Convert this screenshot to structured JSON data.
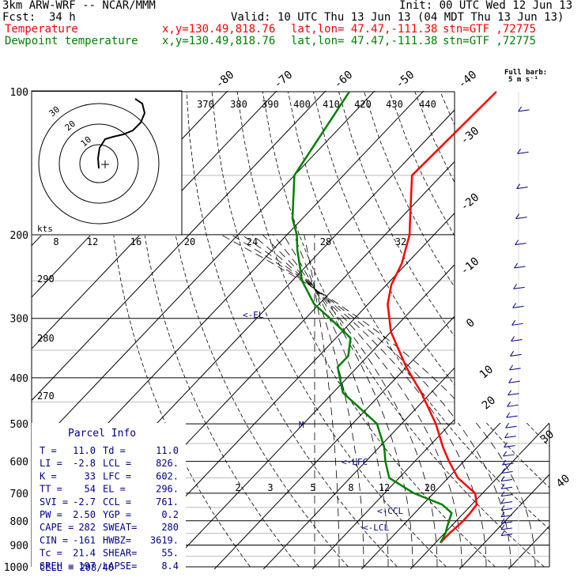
{
  "header": {
    "model": "3km ARW-WRF -- NCAR/MMM",
    "init": "Init: 00 UTC Wed 12 Jun 13",
    "fcst_label": "Fcst:",
    "fcst_value": "34 h",
    "valid": "Valid: 10 UTC Thu 13 Jun 13 (04 MDT Thu 13 Jun 13)",
    "temperature_label": "Temperature",
    "dewpoint_label": "Dewpoint temperature",
    "xy": "x,y=130.49,818.76",
    "latlon": "lat,lon= 47.47,-111.38",
    "stn": "stn=GTF ,72775"
  },
  "colors": {
    "temperature": "#ff0000",
    "dewpoint": "#008000",
    "annot": "#00008b",
    "black": "#000000"
  },
  "full_barb_label_1": "Full barb:",
  "full_barb_label_2": "5 m s⁻¹",
  "chart_data": {
    "type": "line",
    "subtype": "skew-T log-p",
    "y_scale": "log",
    "pressure_ticks": [
      100,
      200,
      300,
      400,
      500,
      600,
      700,
      800,
      900,
      1000
    ],
    "isotherm_labels_top": [
      -80,
      -70,
      -60,
      -50,
      -40
    ],
    "isotherm_labels_right": [
      -30,
      -20,
      -10,
      0,
      10,
      20,
      30,
      40
    ],
    "theta_labels": [
      370,
      380,
      390,
      400,
      410,
      420,
      430,
      440
    ],
    "mixing_ratio_labels_upper": [
      8,
      12,
      16,
      20,
      24,
      28,
      32
    ],
    "mixing_ratio_labels_lower": [
      2,
      3,
      5,
      8,
      12,
      20
    ],
    "adiabat_labels_left": [
      290,
      280,
      270
    ],
    "level_markers": [
      "<-EL",
      "M",
      "<-LFC",
      "<-CCL",
      "<-LCL"
    ],
    "series": [
      {
        "name": "Temperature",
        "p": [
          100,
          150,
          185,
          200,
          230,
          255,
          280,
          320,
          380,
          430,
          500,
          560,
          600,
          650,
          700,
          740,
          770,
          800,
          830,
          850,
          870,
          890
        ],
        "t": [
          -65,
          -66,
          -58,
          -55,
          -51,
          -49,
          -46,
          -40,
          -30,
          -22,
          -13,
          -7,
          -3,
          2,
          8.5,
          11,
          11.3,
          11.4,
          11.2,
          11.0,
          11.0,
          11.0
        ]
      },
      {
        "name": "Dewpoint temperature",
        "p": [
          100,
          150,
          185,
          200,
          215,
          250,
          280,
          300,
          330,
          360,
          380,
          430,
          500,
          560,
          600,
          650,
          700,
          740,
          770,
          800,
          830,
          850,
          870,
          890
        ],
        "t": [
          -95,
          -90,
          -82,
          -78,
          -75,
          -68,
          -61,
          -55,
          -47,
          -44,
          -44,
          -38,
          -25,
          -19,
          -16,
          -12,
          -4,
          4,
          7.5,
          8.5,
          9.5,
          10.2,
          10.6,
          11.0
        ]
      }
    ],
    "hodograph_rings": [
      10,
      20,
      30
    ],
    "hodograph_speed_label": "kts"
  },
  "parcel_info": {
    "title": "Parcel Info",
    "rows": [
      [
        "T  =",
        "11.0",
        "Td =",
        "11.0"
      ],
      [
        "LI =",
        "-2.8",
        "LCL =",
        "826."
      ],
      [
        "K  =",
        "33",
        "LFC =",
        "602."
      ],
      [
        "TT =",
        "54",
        "EL =",
        "296."
      ],
      [
        "SVI =",
        "-2.7",
        "CCL =",
        "761."
      ],
      [
        "PW =",
        "2.50",
        "YGP =",
        "0.2"
      ],
      [
        "CAPE =",
        "282",
        "SWEAT=",
        "280"
      ],
      [
        "CIN =",
        "-161",
        "HWBZ=",
        "3619."
      ],
      [
        "Tc =",
        "21.4",
        "SHEAR=",
        "55."
      ],
      [
        "SREH =",
        "197",
        "LAPSE=",
        "8.4"
      ]
    ],
    "cell": "CELL = 208/40"
  }
}
